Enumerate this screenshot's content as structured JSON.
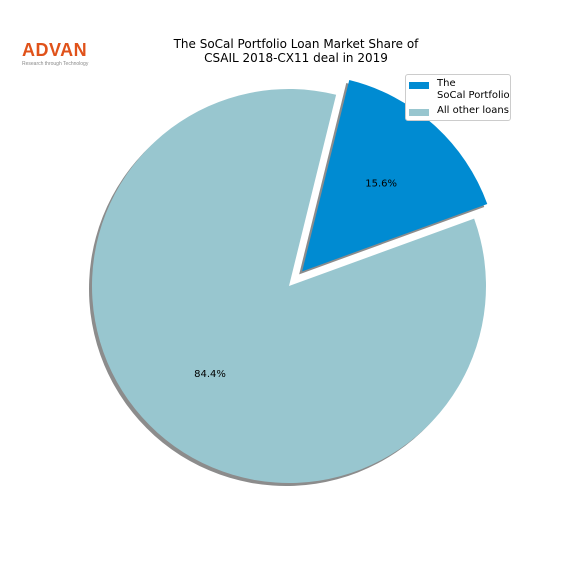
{
  "logo": {
    "word": "ADVAN",
    "tagline": "Research through Technology",
    "color": "#e0521a"
  },
  "chart_data": {
    "type": "pie",
    "title_lines": [
      "The SoCal Portfolio Loan Market Share of",
      "CSAIL 2018-CX11 deal in 2019"
    ],
    "slices": [
      {
        "label": "The\nSoCal Portfolio",
        "value": 15.6,
        "display": "15.6%",
        "color": "#008bd2",
        "exploded": true
      },
      {
        "label": "All other loans",
        "value": 84.4,
        "display": "84.4%",
        "color": "#98c6cf",
        "exploded": false
      }
    ],
    "start_angle_deg": 20,
    "shadow": true,
    "legend_position": "upper-right"
  }
}
